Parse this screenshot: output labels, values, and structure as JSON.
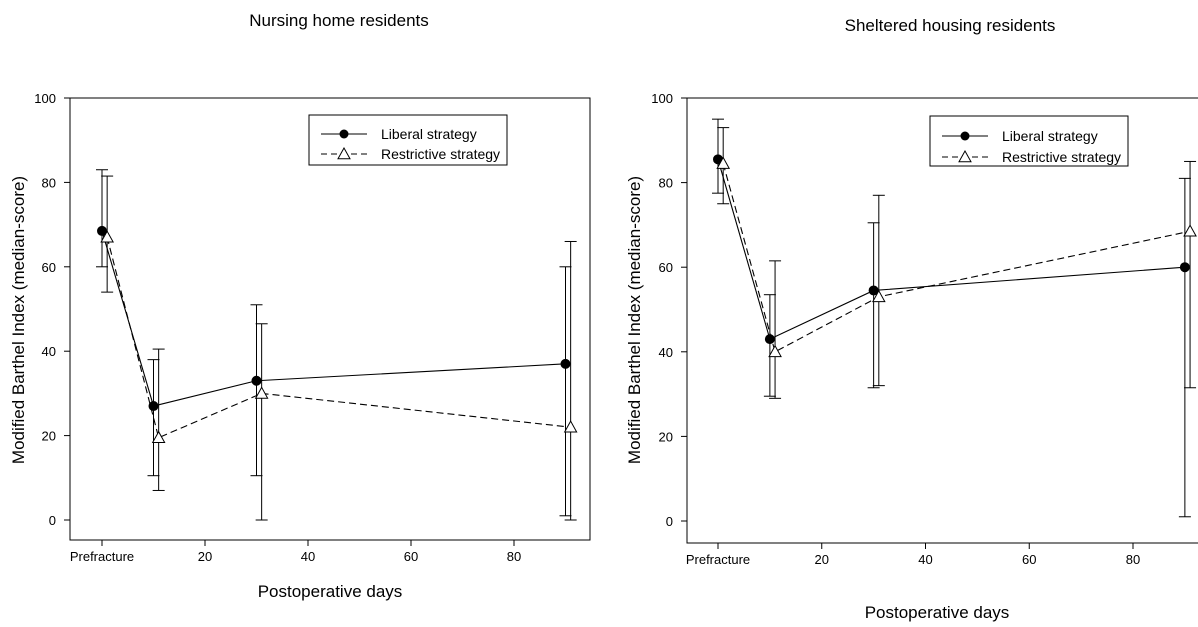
{
  "chart_data": [
    {
      "type": "line",
      "title": "Nursing home residents",
      "xlabel": "Postoperative days",
      "ylabel": "Modified Barthel Index (median-score)",
      "xlim": [
        -6,
        94
      ],
      "ylim": [
        -5,
        100
      ],
      "x_ticks": [
        {
          "value": 0,
          "label": "Prefracture"
        },
        {
          "value": 20,
          "label": "20"
        },
        {
          "value": 40,
          "label": "40"
        },
        {
          "value": 60,
          "label": "60"
        },
        {
          "value": 80,
          "label": "80"
        }
      ],
      "y_ticks": [
        0,
        20,
        40,
        60,
        80,
        100
      ],
      "grid": false,
      "legend_position": "top-right",
      "series": [
        {
          "name": "Liberal strategy",
          "marker": "filled-circle",
          "line_style": "solid",
          "points": [
            {
              "x": 0,
              "y": 68.5,
              "err_low": 60,
              "err_high": 83
            },
            {
              "x": 10,
              "y": 27,
              "err_low": 10.5,
              "err_high": 38
            },
            {
              "x": 30,
              "y": 33,
              "err_low": 10.5,
              "err_high": 51
            },
            {
              "x": 90,
              "y": 37,
              "err_low": 1,
              "err_high": 60
            }
          ]
        },
        {
          "name": "Restrictive strategy",
          "marker": "open-triangle",
          "line_style": "dashed",
          "points": [
            {
              "x": 1,
              "y": 67,
              "err_low": 54,
              "err_high": 81.5
            },
            {
              "x": 11,
              "y": 19.5,
              "err_low": 7,
              "err_high": 40.5
            },
            {
              "x": 31,
              "y": 30,
              "err_low": 0,
              "err_high": 46.5
            },
            {
              "x": 91,
              "y": 22,
              "err_low": 0,
              "err_high": 66
            }
          ]
        }
      ]
    },
    {
      "type": "line",
      "title": "Sheltered housing residents",
      "xlabel": "Postoperative days",
      "ylabel": "Modified Barthel Index (median-score)",
      "xlim": [
        -6,
        94
      ],
      "ylim": [
        -5,
        100
      ],
      "x_ticks": [
        {
          "value": 0,
          "label": "Prefracture"
        },
        {
          "value": 20,
          "label": "20"
        },
        {
          "value": 40,
          "label": "40"
        },
        {
          "value": 60,
          "label": "60"
        },
        {
          "value": 80,
          "label": "80"
        }
      ],
      "y_ticks": [
        0,
        20,
        40,
        60,
        80,
        100
      ],
      "grid": false,
      "legend_position": "top-right",
      "series": [
        {
          "name": "Liberal strategy",
          "marker": "filled-circle",
          "line_style": "solid",
          "points": [
            {
              "x": 0,
              "y": 85.5,
              "err_low": 77.5,
              "err_high": 95
            },
            {
              "x": 10,
              "y": 43,
              "err_low": 29.5,
              "err_high": 53.5
            },
            {
              "x": 30,
              "y": 54.5,
              "err_low": 31.5,
              "err_high": 70.5
            },
            {
              "x": 90,
              "y": 60,
              "err_low": 1,
              "err_high": 81
            }
          ]
        },
        {
          "name": "Restrictive strategy",
          "marker": "open-triangle",
          "line_style": "dashed",
          "points": [
            {
              "x": 1,
              "y": 84.5,
              "err_low": 75,
              "err_high": 93
            },
            {
              "x": 11,
              "y": 40,
              "err_low": 29,
              "err_high": 61.5
            },
            {
              "x": 31,
              "y": 53,
              "err_low": 32,
              "err_high": 77
            },
            {
              "x": 91,
              "y": 68.5,
              "err_low": 31.5,
              "err_high": 85
            }
          ]
        }
      ]
    }
  ]
}
